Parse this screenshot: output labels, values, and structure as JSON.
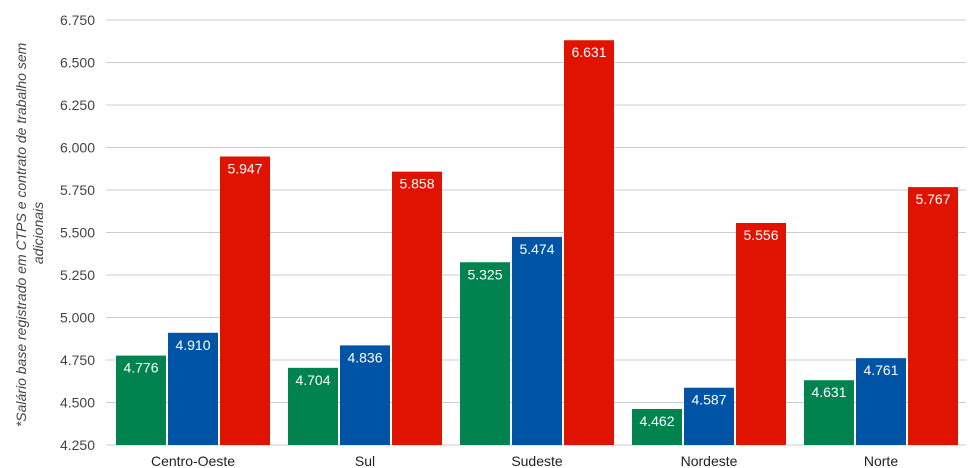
{
  "chart_data": {
    "type": "bar",
    "title": "",
    "xlabel": "",
    "ylabel_lines": [
      "*Salário base registrado em CTPS e contrato de trabalho sem",
      "adicionais"
    ],
    "ylim": [
      4250,
      6750
    ],
    "yticks": [
      4250,
      4500,
      4750,
      5000,
      5250,
      5500,
      5750,
      6000,
      6250,
      6500,
      6750
    ],
    "ytick_labels": [
      "4.250",
      "4.500",
      "4.750",
      "5.000",
      "5.250",
      "5.500",
      "5.750",
      "6.000",
      "6.250",
      "6.500",
      "6.750"
    ],
    "grid": true,
    "legend": "none",
    "categories": [
      "Centro-Oeste",
      "Sul",
      "Sudeste",
      "Nordeste",
      "Norte"
    ],
    "series": [
      {
        "name": "series-1",
        "color": "#00834f",
        "values": [
          4776,
          4704,
          5325,
          4462,
          4631
        ],
        "labels": [
          "4.776",
          "4.704",
          "5.325",
          "4.462",
          "4.631"
        ]
      },
      {
        "name": "series-2",
        "color": "#0054a6",
        "values": [
          4910,
          4836,
          5474,
          4587,
          4761
        ],
        "labels": [
          "4.910",
          "4.836",
          "5.474",
          "4.587",
          "4.761"
        ]
      },
      {
        "name": "series-3",
        "color": "#e01300",
        "values": [
          5947,
          5858,
          6631,
          5556,
          5767
        ],
        "labels": [
          "5.947",
          "5.858",
          "6.631",
          "5.556",
          "5.767"
        ]
      }
    ]
  }
}
